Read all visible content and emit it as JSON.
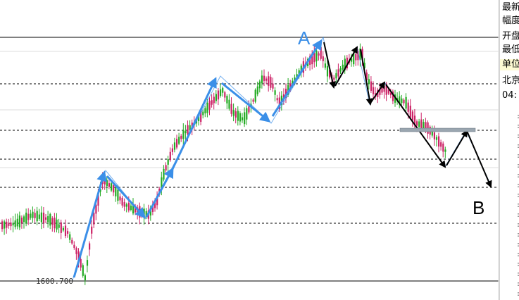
{
  "side_panel": {
    "labels": [
      "最新",
      "幅度",
      "开盘",
      "最低",
      "单位",
      "北京",
      "04:"
    ],
    "highlight_index": 4
  },
  "chart_data": {
    "type": "candlestick",
    "title": "",
    "low_label": "1600.700",
    "annotations": [
      "A",
      "B"
    ],
    "colors": {
      "up_candle": "#cc2266",
      "down_candle": "#22aa22",
      "blue_arrow": "#3b8fe8",
      "black_arrow": "#000000",
      "grid_line": "#000000",
      "resistance_band": "#9aa6b0"
    },
    "price_min": 1600.7,
    "horizontal_levels": [
      "solid",
      "dashed",
      "dashed",
      "dashed",
      "dashed",
      "dashed",
      "solid"
    ],
    "wave_A_to_B": [
      "A",
      "swing-low",
      "swing-high",
      "swing-low",
      "swing-high",
      "swing-low",
      "retest",
      "B"
    ]
  }
}
